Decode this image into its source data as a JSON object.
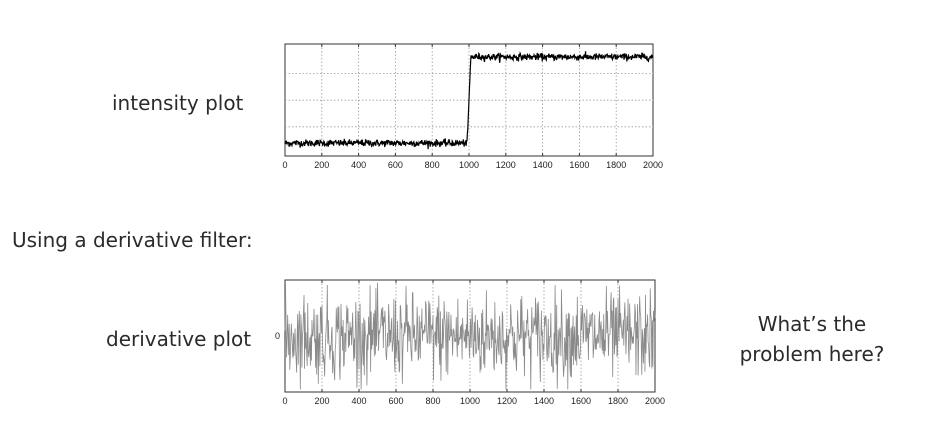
{
  "labels": {
    "intensity": "intensity plot",
    "filter_heading": "Using a derivative filter:",
    "derivative": "derivative plot",
    "question_line1": "What’s the",
    "question_line2": "problem here?"
  },
  "chart_data": [
    {
      "type": "line",
      "name": "intensity plot",
      "xlim": [
        0,
        2000
      ],
      "x_ticks": [
        0,
        200,
        400,
        600,
        800,
        1000,
        1200,
        1400,
        1600,
        1800,
        2000
      ],
      "y_ticks": [],
      "grid": true,
      "grid_style": "dotted",
      "series": [
        {
          "description": "noisy step signal",
          "x": [
            0,
            990,
            1010,
            2000
          ],
          "y": [
            0.0,
            0.0,
            1.0,
            1.0
          ],
          "noise_amplitude": 0.02
        }
      ],
      "ylim": [
        -0.15,
        1.15
      ],
      "color": "#000000"
    },
    {
      "type": "line",
      "name": "derivative plot",
      "xlim": [
        0,
        2000
      ],
      "x_ticks": [
        0,
        200,
        400,
        600,
        800,
        1000,
        1200,
        1400,
        1600,
        1800,
        2000
      ],
      "y_ticks": [
        0
      ],
      "grid": true,
      "grid_style": "dotted",
      "series": [
        {
          "description": "derivative of noisy step (noise dominated)",
          "mean": 0,
          "noise_amplitude": 1.0
        }
      ],
      "ylim": [
        -1.1,
        1.1
      ],
      "color": "#000000"
    }
  ]
}
